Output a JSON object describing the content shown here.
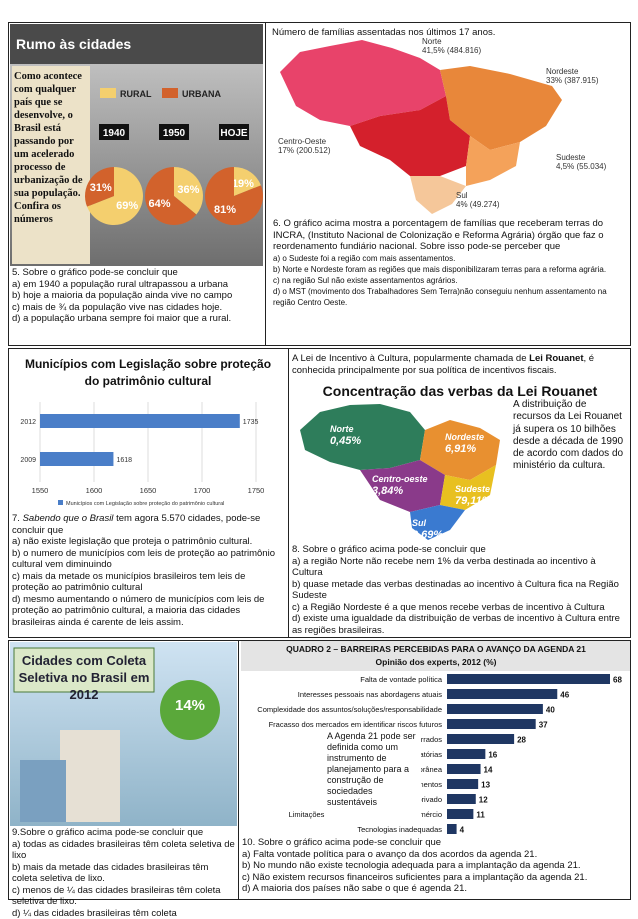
{
  "q5": {
    "image": {
      "title": "Rumo às cidades",
      "caption": "Como acontece com qualquer país que se desenvolve, o Brasil está passando por um acelerado processo de urbanização de sua população. Confira os números",
      "legend": [
        {
          "label": "RURAL",
          "color": "#f4cf6e"
        },
        {
          "label": "URBANA",
          "color": "#d2622c"
        }
      ],
      "pies": [
        {
          "year": "1940",
          "values": [
            69,
            31
          ],
          "value_labels": [
            "69%",
            "31%"
          ]
        },
        {
          "year": "1950",
          "values": [
            36,
            64
          ],
          "value_labels": [
            "36%",
            "64%"
          ]
        },
        {
          "year": "HOJE",
          "values": [
            19,
            81
          ],
          "value_labels": [
            "19%",
            "81%"
          ]
        }
      ]
    },
    "question": "5. Sobre o gráfico pode-se concluir que",
    "options": [
      "a) em 1940 a população rural ultrapassou a urbana",
      "b) hoje a maioria da população ainda vive no campo",
      "c) mais de ¾ da população vive nas cidades hoje.",
      "d) a população urbana sempre foi maior que a rural."
    ]
  },
  "q6": {
    "title": "Número de famílias assentadas nos últimos 17 anos.",
    "regions": [
      {
        "name": "Norte",
        "label": "41,5% (484.816)"
      },
      {
        "name": "Nordeste",
        "label": "33% (387.915)"
      },
      {
        "name": "Centro-Oeste",
        "label": "17% (200.512)"
      },
      {
        "name": "Sudeste",
        "label": "4,5% (55.034)"
      },
      {
        "name": "Sul",
        "label": "4% (49.274)"
      }
    ],
    "question": "6. O gráfico acima mostra a porcentagem de famílias que receberam terras do INCRA, (Instituto Nacional de Colonização e Reforma Agrária) órgão que faz o reordenamento fundiário nacional. Sobre isso pode-se perceber que",
    "options": [
      "a) o Sudeste foi a região com mais assentamentos.",
      "b) Norte  e Nordeste foram as regiões que mais disponibilizaram terras para a reforma agrária.",
      "c) na região Sul não existe assentamentos agrários.",
      "d) o MST (movimento dos Trabalhadores Sem Terra)não conseguiu nenhum assentamento na região Centro Oeste."
    ]
  },
  "q7": {
    "chart": {
      "title": "Municípios com Legislação sobre proteção do patrimônio cultural",
      "categories": [
        "2012",
        "2009"
      ],
      "values": [
        1735,
        1618
      ],
      "color": "#4a7ec8",
      "xlim": [
        1550,
        1750
      ],
      "xticks": [
        1550,
        1600,
        1650,
        1700,
        1750
      ],
      "legend": "Municípios com Legislação sobre proteção do patrimônio cultural"
    },
    "question_number": "7.",
    "question_italic": "Sabendo que o Brasil",
    "question_rest": "tem agora 5.570 cidades, pode-se concluir que",
    "options": [
      "a) não existe legislação que proteja o patrimônio cultural.",
      "b) o numero de municípios com leis de proteção ao patrimônio cultural vem diminuindo",
      "c) mais da metade os municípios brasileiros tem leis de proteção ao patrimônio cultural",
      "d) mesmo aumentando o número de municípios com leis de proteção ao patrimônio cultural, a maioria das cidades brasileiras ainda é carente de leis assim."
    ]
  },
  "q8": {
    "intro_start": "A Lei de Incentivo à Cultura, popularmente chamada de",
    "intro_bold": "Lei Rouanet",
    "intro_end": ", é conhecida principalmente por sua política de incentivos fiscais.",
    "title": "Concentração das verbas da Lei Rouanet",
    "regions": [
      {
        "name": "Norte",
        "label": "0,45%"
      },
      {
        "name": "Nordeste",
        "label": "6,91%"
      },
      {
        "name": "Centro-oeste",
        "label": "3,84%"
      },
      {
        "name": "Sudeste",
        "label": "79,11%"
      },
      {
        "name": "Sul",
        "label": "9,69%"
      }
    ],
    "note": "A distribuição de recursos da Lei Rouanet já supera os 10 bilhões desde a década de 1990 de acordo com dados do ministério da cultura.",
    "question": "8. Sobre o gráfico acima pode-se concluir que",
    "options": [
      "a) a região Norte não recebe nem 1% da verba destinada ao incentivo à Cultura",
      "b) quase metade das verbas destinadas ao incentivo à Cultura fica na Região Sudeste",
      "c) a Região Nordeste é a que menos recebe verbas de incentivo à Cultura",
      "d) existe uma igualdade da distribuição de verbas de  incentivo à Cultura entre as regiões brasileiras."
    ]
  },
  "q9": {
    "image": {
      "title": "Cidades com Coleta Seletiva no Brasil em 2012",
      "value_label": "14%"
    },
    "question": "9.Sobre o gráfico acima pode-se concluir que",
    "options": [
      "a) todas as cidades brasileiras têm coleta seletiva de lixo",
      "b) mais da metade das cidades brasileiras têm coleta seletiva de lixo.",
      "c) menos de ¼ das cidades brasileiras têm coleta seletiva de lixo.",
      "d) ¼ das cidades brasileiras têm coleta"
    ]
  },
  "q10": {
    "chart": {
      "title": "QUADRO 2 – BARREIRAS PERCEBIDAS PARA O AVANÇO DA AGENDA 21",
      "subtitle": "Opinião dos experts, 2012 (%)",
      "categories": [
        "Falta de vontade política",
        "Interesses pessoais nas abordagens atuais",
        "Complexidade dos assuntos/soluções/responsabilidade",
        "Fracasso dos mercados em identificar riscos futuros",
        "errados",
        "ões regulatórias",
        "temporânea",
        "e conhecimentos",
        "privado",
        "Limitações pelos acordos globais de comércio",
        "Tecnologias inadequadas"
      ],
      "values": [
        68,
        46,
        40,
        37,
        28,
        16,
        14,
        13,
        12,
        11,
        4
      ],
      "color": "#1f3763"
    },
    "callout": "A Agenda 21 pode ser definida como um instrumento de planejamento para a construção de sociedades sustentáveis",
    "question": "10. Sobre o gráfico acima pode-se concluir que",
    "options": [
      "a) Falta vontade política para o avanço da dos acordos da agenda 21.",
      "b) No mundo não existe tecnologia adequada para a implantação da agenda 21.",
      "c) Não existem recursos financeiros suficientes para a implantação da agenda 21.",
      "d) A maioria dos países não sabe o que é agenda 21."
    ]
  }
}
